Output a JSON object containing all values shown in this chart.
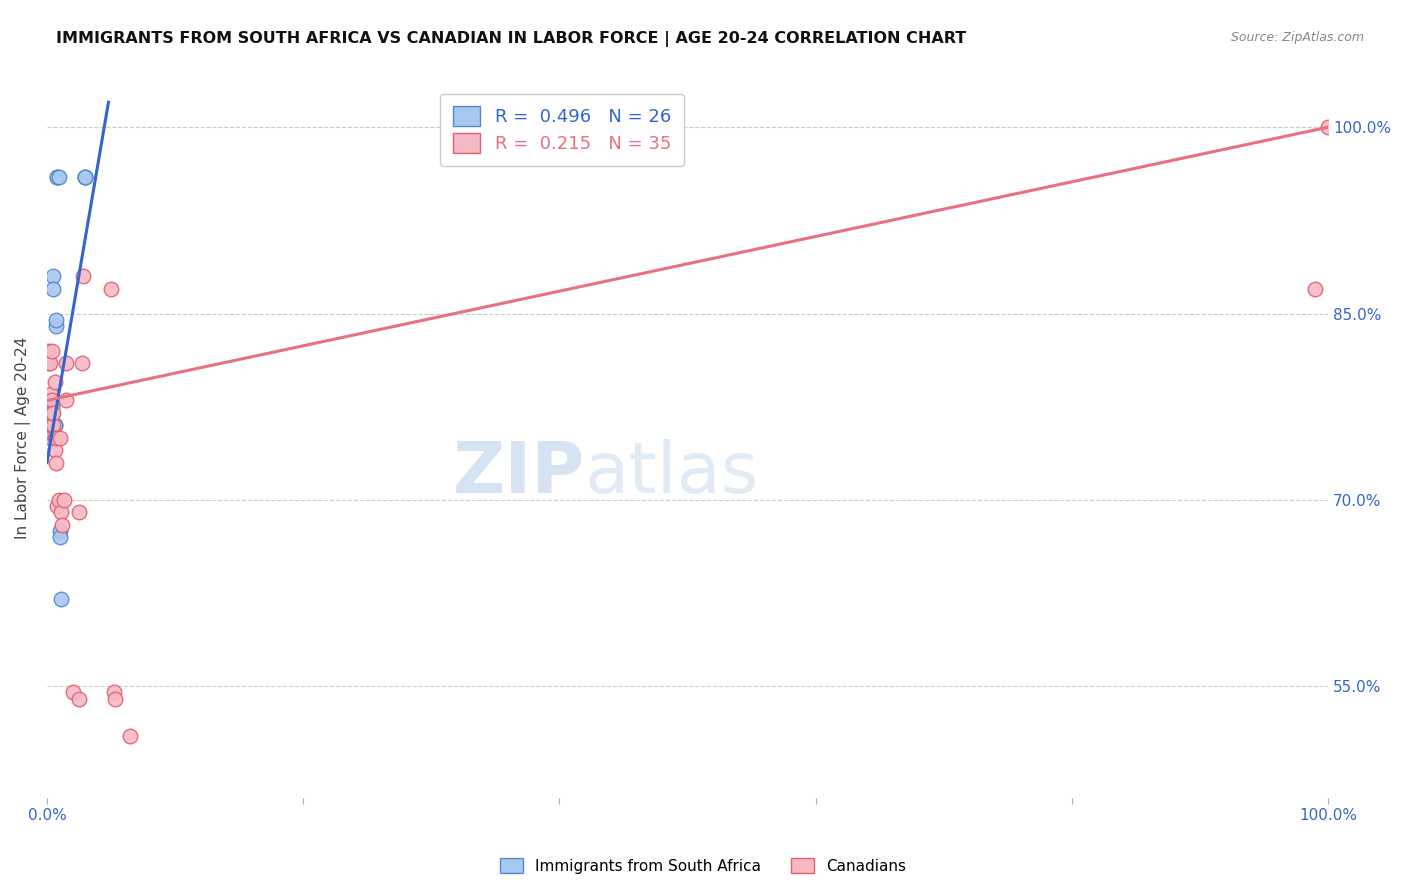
{
  "title": "IMMIGRANTS FROM SOUTH AFRICA VS CANADIAN IN LABOR FORCE | AGE 20-24 CORRELATION CHART",
  "source": "Source: ZipAtlas.com",
  "ylabel": "In Labor Force | Age 20-24",
  "ytick_labels": [
    "55.0%",
    "70.0%",
    "85.0%",
    "100.0%"
  ],
  "ytick_values": [
    0.55,
    0.7,
    0.85,
    1.0
  ],
  "legend_r1": "R =  0.496   N = 26",
  "legend_r2": "R =  0.215   N = 35",
  "legend_label_immigrants": "Immigrants from South Africa",
  "legend_label_canadians": "Canadians",
  "blue_scatter_x": [
    0.001,
    0.001,
    0.002,
    0.002,
    0.002,
    0.003,
    0.003,
    0.003,
    0.004,
    0.004,
    0.004,
    0.005,
    0.005,
    0.006,
    0.006,
    0.007,
    0.007,
    0.008,
    0.008,
    0.009,
    0.01,
    0.01,
    0.011,
    0.03,
    0.03,
    0.03
  ],
  "blue_scatter_y": [
    0.77,
    0.775,
    0.76,
    0.765,
    0.77,
    0.75,
    0.755,
    0.76,
    0.775,
    0.77,
    0.76,
    0.88,
    0.87,
    0.76,
    0.76,
    0.84,
    0.845,
    0.96,
    0.96,
    0.96,
    0.675,
    0.67,
    0.62,
    0.96,
    0.96,
    0.96
  ],
  "pink_scatter_x": [
    0.001,
    0.001,
    0.002,
    0.002,
    0.003,
    0.003,
    0.004,
    0.004,
    0.004,
    0.005,
    0.005,
    0.006,
    0.006,
    0.006,
    0.007,
    0.007,
    0.008,
    0.009,
    0.01,
    0.011,
    0.012,
    0.013,
    0.015,
    0.015,
    0.02,
    0.025,
    0.025,
    0.027,
    0.028,
    0.05,
    0.052,
    0.053,
    0.065,
    0.99,
    1.0
  ],
  "pink_scatter_y": [
    0.82,
    0.81,
    0.81,
    0.78,
    0.785,
    0.76,
    0.77,
    0.82,
    0.78,
    0.76,
    0.77,
    0.75,
    0.74,
    0.795,
    0.75,
    0.73,
    0.695,
    0.7,
    0.75,
    0.69,
    0.68,
    0.7,
    0.81,
    0.78,
    0.545,
    0.54,
    0.69,
    0.81,
    0.88,
    0.87,
    0.545,
    0.54,
    0.51,
    0.87,
    1.0
  ],
  "blue_line_x": [
    0.0,
    0.048
  ],
  "blue_line_y": [
    0.73,
    1.02
  ],
  "pink_line_x": [
    0.0,
    1.0
  ],
  "pink_line_y": [
    0.78,
    1.0
  ],
  "dot_size": 110,
  "blue_color": "#a8c8f0",
  "pink_color": "#f5b8c4",
  "blue_edge_color": "#5588cc",
  "pink_edge_color": "#e06070",
  "blue_line_color": "#3366cc",
  "pink_line_color": "#e87080",
  "background_color": "#ffffff",
  "grid_color": "#cccccc",
  "title_color": "#111111",
  "axis_label_color": "#3366cc",
  "xlim": [
    0.0,
    1.0
  ],
  "ylim": [
    0.46,
    1.04
  ]
}
